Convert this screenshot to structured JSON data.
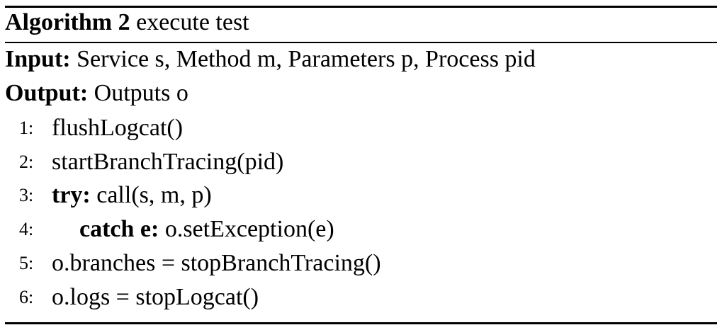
{
  "algorithm": {
    "label": "Algorithm 2",
    "title": "execute test",
    "input_label": "Input:",
    "input_text": "Service s, Method m, Parameters p, Process pid",
    "output_label": "Output:",
    "output_text": "Outputs o",
    "steps": [
      {
        "num": "1:",
        "keyword": "",
        "text": "flushLogcat()"
      },
      {
        "num": "2:",
        "keyword": "",
        "text": "startBranchTracing(pid)"
      },
      {
        "num": "3:",
        "keyword": "try:",
        "text": "call(s, m, p)"
      },
      {
        "num": "4:",
        "keyword": "catch e:",
        "text": "o.setException(e)"
      },
      {
        "num": "5:",
        "keyword": "",
        "text": "o.branches = stopBranchTracing()"
      },
      {
        "num": "6:",
        "keyword": "",
        "text": "o.logs = stopLogcat()"
      }
    ]
  }
}
